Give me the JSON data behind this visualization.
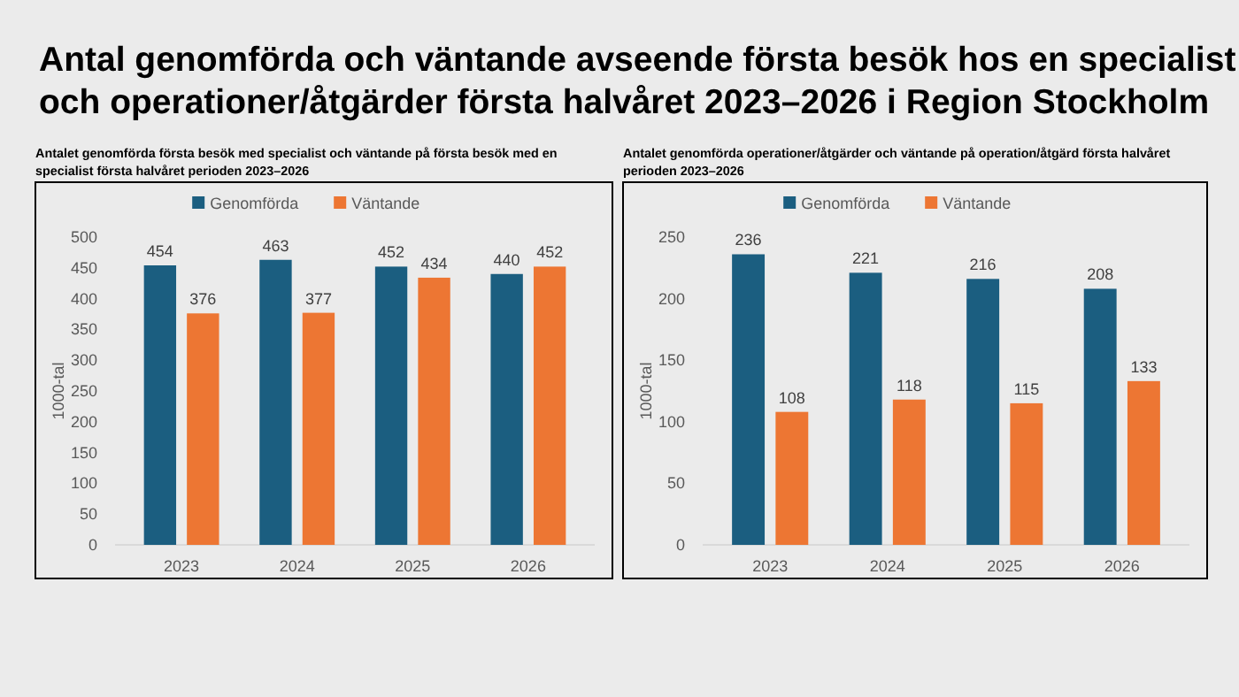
{
  "chart_data": [
    {
      "type": "bar",
      "title": "Antal genomförda och väntande avseende första besök hos en specialist och operationer/åtgärder första halvåret 2023–2026 i Region Stockholm",
      "subtitle": "Antalet genomförda första besök med specialist och väntande på första besök med en specialist första halvåret perioden 2023–2026",
      "ylabel": "1000-tal",
      "categories": [
        "2023",
        "2024",
        "2025",
        "2026"
      ],
      "series": [
        {
          "name": "Genomförda",
          "color": "#1b5e80",
          "values": [
            454,
            463,
            452,
            440
          ]
        },
        {
          "name": "Väntande",
          "color": "#ed7633",
          "values": [
            376,
            377,
            434,
            452
          ]
        }
      ],
      "ylim": [
        0,
        500
      ],
      "yticks": [
        0,
        50,
        100,
        150,
        200,
        250,
        300,
        350,
        400,
        450,
        500
      ],
      "grid": false,
      "legend": "top",
      "data_labels": true
    },
    {
      "type": "bar",
      "subtitle": "Antalet genomförda operationer/åtgärder och väntande på operation/åtgärd första halvåret perioden 2023–2026",
      "ylabel": "1000-tal",
      "categories": [
        "2023",
        "2024",
        "2025",
        "2026"
      ],
      "series": [
        {
          "name": "Genomförda",
          "color": "#1b5e80",
          "values": [
            236,
            221,
            216,
            208
          ]
        },
        {
          "name": "Väntande",
          "color": "#ed7633",
          "values": [
            108,
            118,
            115,
            133
          ]
        }
      ],
      "ylim": [
        0,
        250
      ],
      "yticks": [
        0,
        50,
        100,
        150,
        200,
        250
      ],
      "grid": false,
      "legend": "top",
      "data_labels": true
    }
  ]
}
